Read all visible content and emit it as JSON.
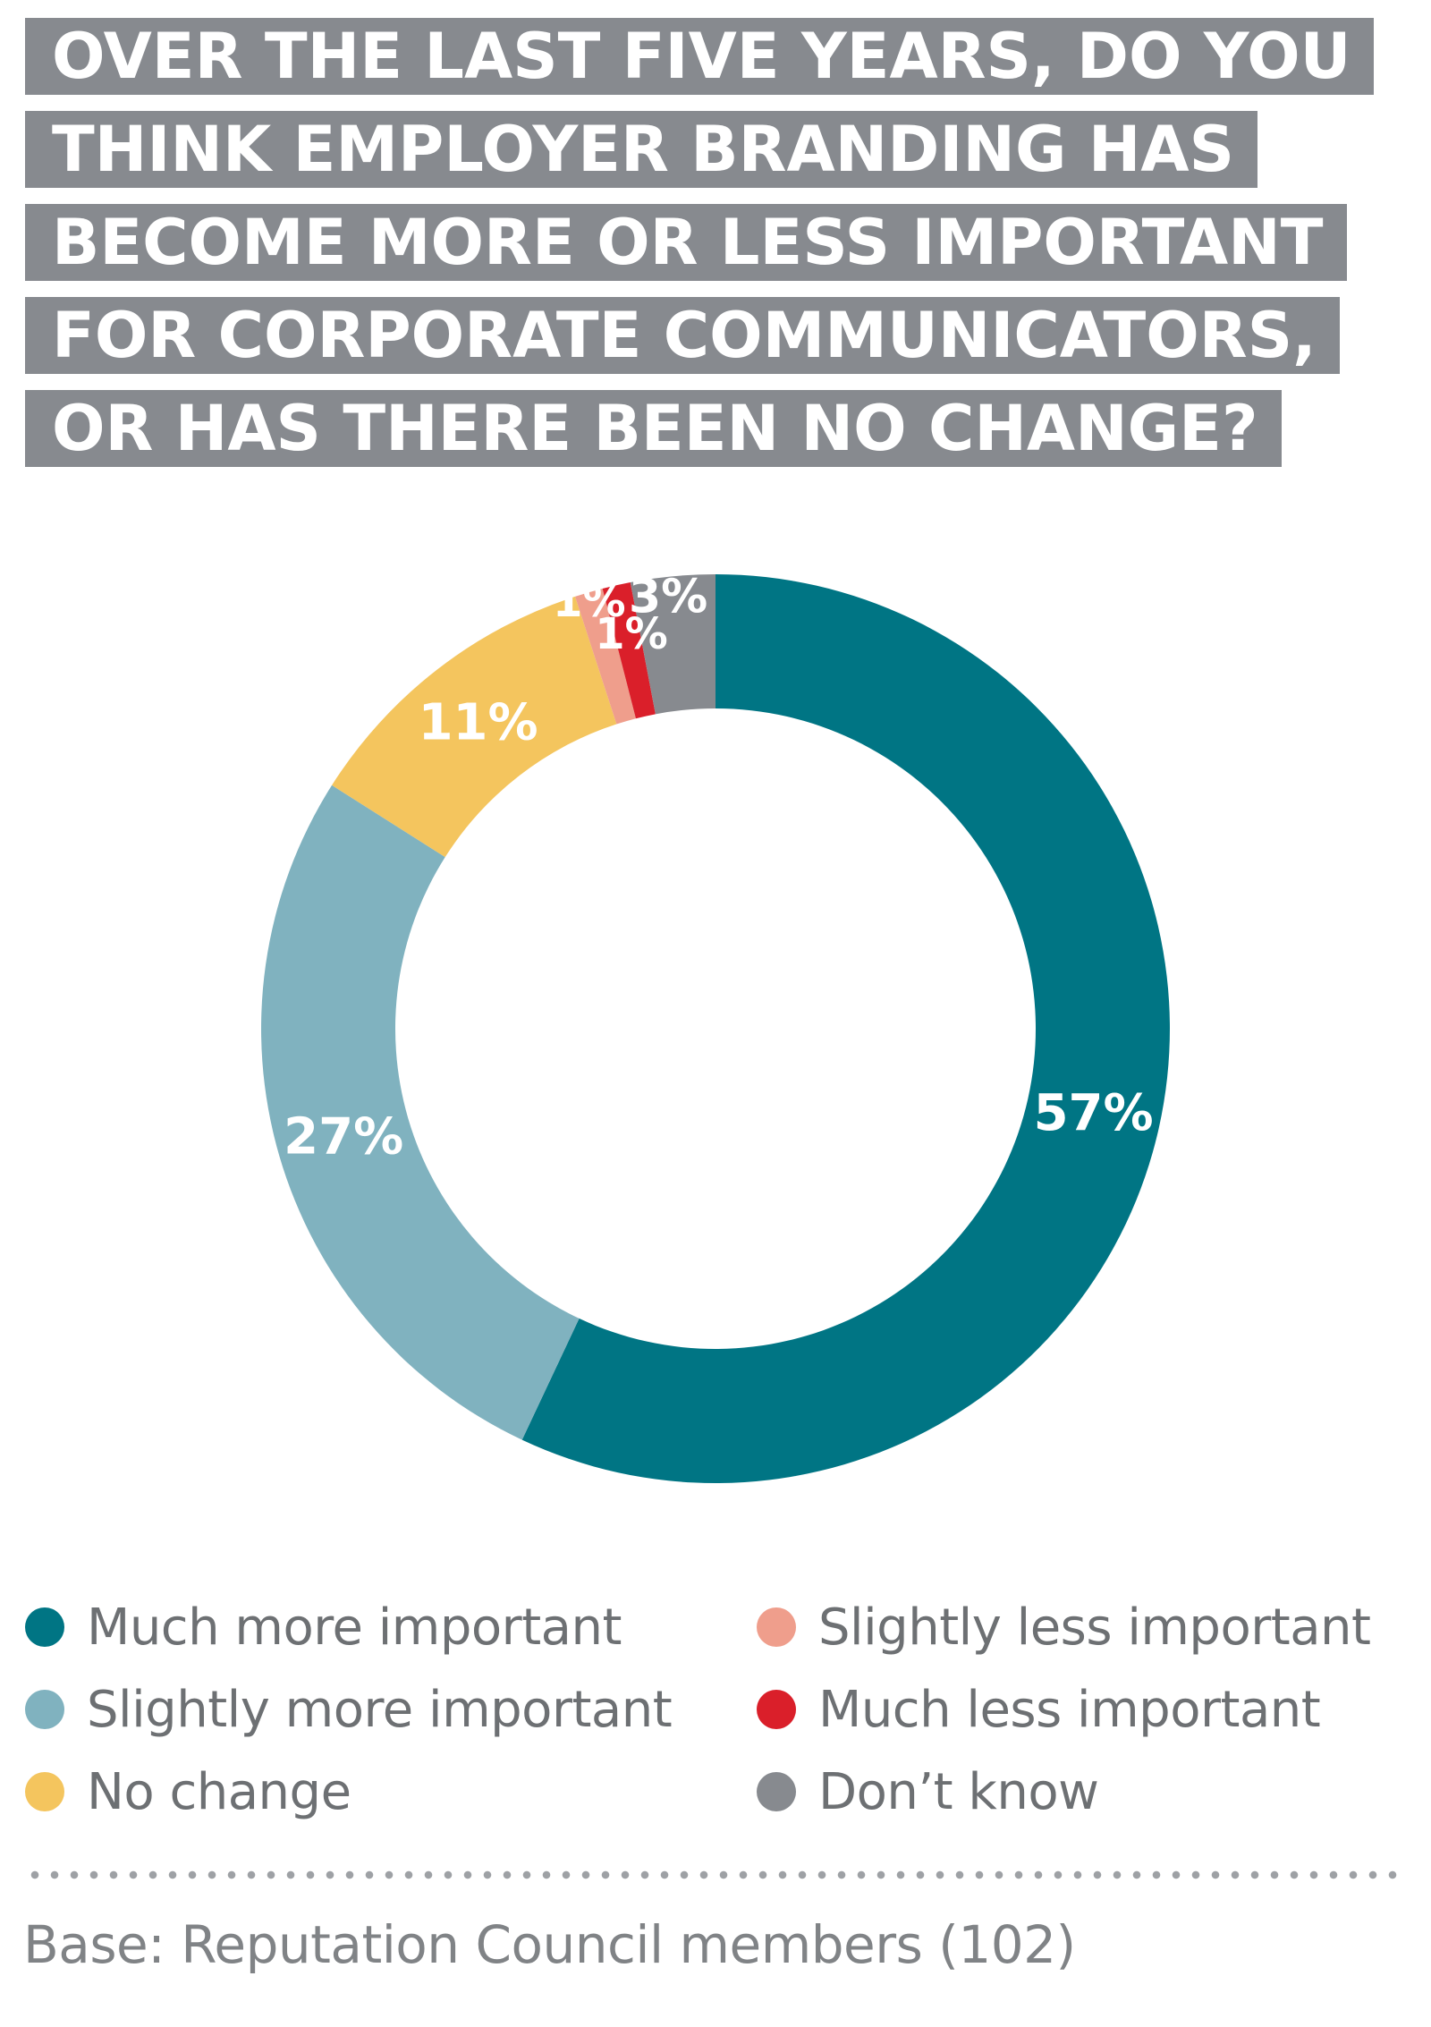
{
  "title_lines": [
    "OVER THE LAST FIVE YEARS, DO YOU",
    "THINK EMPLOYER BRANDING HAS",
    "BECOME MORE OR LESS IMPORTANT",
    "FOR CORPORATE COMMUNICATORS,",
    "OR HAS THERE BEEN NO CHANGE?"
  ],
  "chart_data": {
    "type": "pie",
    "style": "donut",
    "title": "OVER THE LAST FIVE YEARS, DO YOU THINK EMPLOYER BRANDING HAS BECOME MORE OR LESS IMPORTANT FOR CORPORATE COMMUNICATORS, OR HAS THERE BEEN NO CHANGE?",
    "unit": "%",
    "legend_position": "bottom",
    "slices": [
      {
        "label": "Much more important",
        "value": 57,
        "display": "57%",
        "color": "#007584"
      },
      {
        "label": "Slightly more important",
        "value": 27,
        "display": "27%",
        "color": "#80b2bf"
      },
      {
        "label": "No change",
        "value": 11,
        "display": "11%",
        "color": "#f4c55e"
      },
      {
        "label": "Slightly less important",
        "value": 1,
        "display": "1%",
        "color": "#ef9e8c"
      },
      {
        "label": "Much less important",
        "value": 1,
        "display": "1%",
        "color": "#da1f2a"
      },
      {
        "label": "Don’t know",
        "value": 3,
        "display": "3%",
        "color": "#878a8f"
      }
    ]
  },
  "legend": {
    "items": [
      {
        "label": "Much more important",
        "color": "#007584"
      },
      {
        "label": "Slightly more important",
        "color": "#80b2bf"
      },
      {
        "label": "No change",
        "color": "#f4c55e"
      },
      {
        "label": "Slightly less important",
        "color": "#ef9e8c"
      },
      {
        "label": "Much less important",
        "color": "#da1f2a"
      },
      {
        "label": "Don’t know",
        "color": "#878a8f"
      }
    ]
  },
  "footnote": "Base: Reputation Council members (102)"
}
